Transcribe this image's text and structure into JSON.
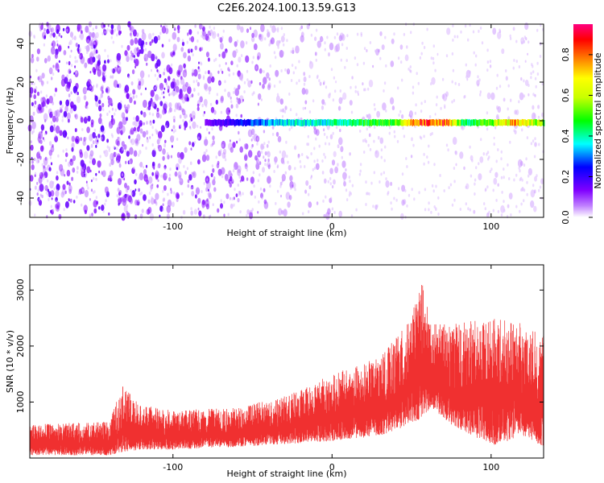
{
  "figure": {
    "title": "C2E6.2024.100.13.59.G13"
  },
  "chart_data": [
    {
      "type": "heatmap",
      "xlabel": "Height of straight line (km)",
      "ylabel": "Frequency (Hz)",
      "xlim": [
        -190,
        133
      ],
      "ylim": [
        -50,
        50
      ],
      "xticks": [
        -100,
        0,
        100
      ],
      "yticks": [
        -40,
        -20,
        0,
        20,
        40
      ],
      "colorbar": {
        "label": "Normalized spectral amplitude",
        "range": [
          0,
          0.95
        ],
        "ticks": [
          0.0,
          0.2,
          0.4,
          0.6,
          0.8
        ],
        "colormap": "white-violet-blue-cyan-green-yellow-orange-red-magenta"
      },
      "band": {
        "description": "narrow spectral band near 0 Hz",
        "frequency_hz": [
          0,
          -2
        ],
        "x_range_km": [
          -80,
          133
        ],
        "amplitude_profile": [
          {
            "x": -80,
            "amp": 0.15
          },
          {
            "x": -60,
            "amp": 0.25
          },
          {
            "x": -40,
            "amp": 0.35
          },
          {
            "x": -20,
            "amp": 0.4
          },
          {
            "x": 0,
            "amp": 0.42
          },
          {
            "x": 20,
            "amp": 0.5
          },
          {
            "x": 40,
            "amp": 0.55
          },
          {
            "x": 55,
            "amp": 0.85
          },
          {
            "x": 70,
            "amp": 0.9
          },
          {
            "x": 85,
            "amp": 0.4
          },
          {
            "x": 100,
            "amp": 0.6
          },
          {
            "x": 115,
            "amp": 0.8
          },
          {
            "x": 130,
            "amp": 0.6
          }
        ]
      },
      "background_density": [
        {
          "x": -190,
          "density": 0.55
        },
        {
          "x": -140,
          "density": 0.6
        },
        {
          "x": -100,
          "density": 0.55
        },
        {
          "x": -60,
          "density": 0.45
        },
        {
          "x": -40,
          "density": 0.25
        },
        {
          "x": 0,
          "density": 0.15
        },
        {
          "x": 50,
          "density": 0.1
        },
        {
          "x": 55,
          "density": 0.0
        },
        {
          "x": 80,
          "density": 0.05
        },
        {
          "x": 133,
          "density": 0.08
        }
      ],
      "series_color": "#7f00ff"
    },
    {
      "type": "line",
      "xlabel": "Height of straight line (km)",
      "ylabel": "SNR (10 * v/v)",
      "xlim": [
        -190,
        133
      ],
      "ylim": [
        0,
        3450
      ],
      "xticks": [
        -100,
        0,
        100
      ],
      "yticks": [
        1000,
        2000,
        3000
      ],
      "color": "#f03030",
      "envelope": [
        {
          "x": -190,
          "low": 50,
          "high": 600
        },
        {
          "x": -140,
          "low": 50,
          "high": 650
        },
        {
          "x": -132,
          "low": 100,
          "high": 1300
        },
        {
          "x": -120,
          "low": 150,
          "high": 950
        },
        {
          "x": -100,
          "low": 150,
          "high": 850
        },
        {
          "x": -60,
          "low": 200,
          "high": 900
        },
        {
          "x": -30,
          "low": 250,
          "high": 1100
        },
        {
          "x": 0,
          "low": 300,
          "high": 1500
        },
        {
          "x": 30,
          "low": 400,
          "high": 1800
        },
        {
          "x": 50,
          "low": 600,
          "high": 2500
        },
        {
          "x": 56,
          "low": 700,
          "high": 3300
        },
        {
          "x": 62,
          "low": 900,
          "high": 2400
        },
        {
          "x": 75,
          "low": 600,
          "high": 2400
        },
        {
          "x": 100,
          "low": 200,
          "high": 2500
        },
        {
          "x": 120,
          "low": 400,
          "high": 2400
        },
        {
          "x": 133,
          "low": 200,
          "high": 2200
        }
      ]
    }
  ]
}
